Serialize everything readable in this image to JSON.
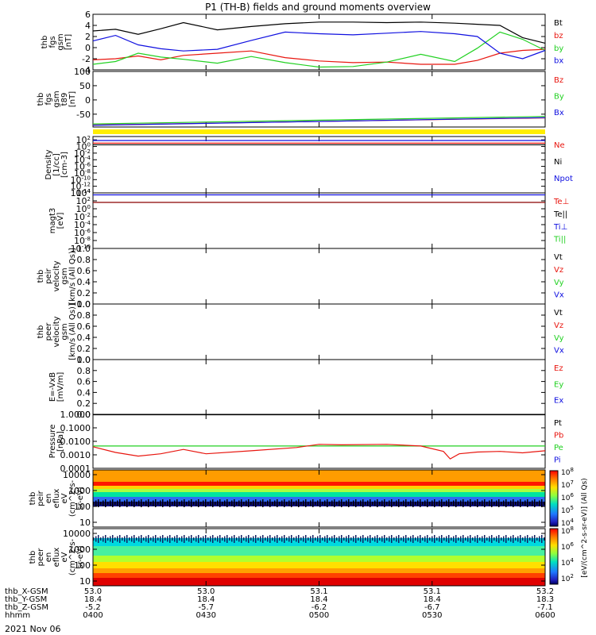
{
  "title": "P1 (TH-B) fields and ground moments overview",
  "date": "2021 Nov 06",
  "colors": {
    "black": "#000000",
    "red": "#e8160f",
    "green": "#22d122",
    "blue": "#1010e0",
    "darkred": "#8b0000",
    "yellow": "#ffee00"
  },
  "ephemeris": {
    "labels": [
      "thb_X-GSM",
      "thb_Y-GSM",
      "thb_Z-GSM",
      "hhmm"
    ],
    "columns": [
      [
        "53.0",
        "18.4",
        "-5.2",
        "0400"
      ],
      [
        "53.0",
        "18.4",
        "-5.7",
        "0430"
      ],
      [
        "53.1",
        "18.4",
        "-6.2",
        "0500"
      ],
      [
        "53.1",
        "18.4",
        "-6.7",
        "0530"
      ],
      [
        "53.2",
        "18.3",
        "-7.1",
        "0600"
      ]
    ]
  },
  "colorbar": {
    "label": "[eV/(cm^2-s-sr-eV)] (All Qs)",
    "top_ticks": [
      "10^8",
      "10^7",
      "10^6",
      "10^5",
      "10^4"
    ],
    "bottom_ticks": [
      "10^8",
      "10^6",
      "10^4",
      "10^2"
    ]
  },
  "chart_data": [
    {
      "type": "line",
      "id": "bfield",
      "ylabel": [
        "thb",
        "fgs",
        "gsm",
        "[nT]"
      ],
      "ylim": [
        -4,
        6
      ],
      "yticks": [
        "6",
        "4",
        "2",
        "0",
        "-2",
        "-4"
      ],
      "x_range": [
        "0400",
        "0600"
      ],
      "legend": [
        {
          "text": "Bt",
          "color": "#000000"
        },
        {
          "text": "bz",
          "color": "#e8160f"
        },
        {
          "text": "by",
          "color": "#22d122"
        },
        {
          "text": "bx",
          "color": "#1010e0"
        }
      ],
      "series": [
        {
          "name": "Bt",
          "color": "#000000",
          "x_hours": [
            4.0,
            4.1,
            4.2,
            4.3,
            4.4,
            4.55,
            4.7,
            4.85,
            5.0,
            5.15,
            5.3,
            5.45,
            5.6,
            5.7,
            5.8,
            5.9,
            6.0
          ],
          "values": [
            3.0,
            3.3,
            2.4,
            3.4,
            4.5,
            3.2,
            3.8,
            4.3,
            4.6,
            4.6,
            4.5,
            4.6,
            4.4,
            4.2,
            4.0,
            1.8,
            0.8
          ]
        },
        {
          "name": "bz",
          "color": "#e8160f",
          "x_hours": [
            4.0,
            4.1,
            4.2,
            4.3,
            4.4,
            4.55,
            4.7,
            4.85,
            5.0,
            5.15,
            5.3,
            5.45,
            5.6,
            5.7,
            5.8,
            5.9,
            6.0
          ],
          "values": [
            -2.2,
            -2.0,
            -1.5,
            -2.2,
            -1.4,
            -1.0,
            -0.6,
            -1.8,
            -2.4,
            -2.7,
            -2.6,
            -3.0,
            -3.0,
            -2.3,
            -1.0,
            -0.5,
            -0.3
          ]
        },
        {
          "name": "by",
          "color": "#22d122",
          "x_hours": [
            4.0,
            4.1,
            4.2,
            4.3,
            4.4,
            4.55,
            4.7,
            4.85,
            5.0,
            5.15,
            5.3,
            5.45,
            5.6,
            5.7,
            5.8,
            5.9,
            6.0
          ],
          "values": [
            -3.0,
            -2.5,
            -1.0,
            -1.7,
            -2.1,
            -2.8,
            -1.6,
            -2.7,
            -3.5,
            -3.4,
            -2.6,
            -1.2,
            -2.5,
            -0.1,
            2.8,
            1.5,
            -0.5
          ]
        },
        {
          "name": "bx",
          "color": "#1010e0",
          "x_hours": [
            4.0,
            4.1,
            4.2,
            4.3,
            4.4,
            4.55,
            4.7,
            4.85,
            5.0,
            5.15,
            5.3,
            5.45,
            5.6,
            5.7,
            5.8,
            5.9,
            6.0
          ],
          "values": [
            1.2,
            2.2,
            0.5,
            -0.2,
            -0.6,
            -0.3,
            1.3,
            2.8,
            2.5,
            2.3,
            2.6,
            2.9,
            2.5,
            2.0,
            -1.0,
            -2.0,
            -0.5
          ]
        }
      ]
    },
    {
      "type": "line",
      "id": "bmodel",
      "ylabel": [
        "thb",
        "fgs",
        "gsm",
        "t89",
        "[nT]"
      ],
      "ylim": [
        -95,
        100
      ],
      "yticks": [
        "100",
        "50",
        "0",
        "-50"
      ],
      "legend": [
        {
          "text": "Bz",
          "color": "#e8160f"
        },
        {
          "text": "By",
          "color": "#22d122"
        },
        {
          "text": "Bx",
          "color": "#1010e0"
        }
      ],
      "series": [
        {
          "name": "Bz",
          "color": "#e8160f",
          "x_hours": [
            4.0,
            6.0
          ],
          "values": [
            -88,
            -63
          ]
        },
        {
          "name": "By",
          "color": "#22d122",
          "x_hours": [
            4.0,
            6.0
          ],
          "values": [
            -84,
            -58
          ]
        },
        {
          "name": "Bx",
          "color": "#1010e0",
          "x_hours": [
            4.0,
            6.0
          ],
          "values": [
            -89,
            -62
          ]
        }
      ]
    },
    {
      "type": "line",
      "id": "density",
      "ylabel": [
        "Density",
        "[1/cc]",
        "[cm-3]"
      ],
      "log": true,
      "ylim_exp": [
        -14,
        3
      ],
      "yticks": [
        "10^2",
        "10^0",
        "10^-2",
        "10^-4",
        "10^-6",
        "10^-8",
        "10^-10",
        "10^-12",
        "10^-14"
      ],
      "legend": [
        {
          "text": "Ne",
          "color": "#e8160f"
        },
        {
          "text": "Ni",
          "color": "#000000"
        },
        {
          "text": "Npot",
          "color": "#1010e0"
        }
      ],
      "series": [
        {
          "name": "Ne",
          "color": "#e8160f",
          "exp": 1.0
        },
        {
          "name": "Ni",
          "color": "#000000",
          "exp": 0.5
        },
        {
          "name": "Npot",
          "color": "#1010e0",
          "exp": 1.8
        }
      ]
    },
    {
      "type": "line",
      "id": "temperature",
      "ylabel": [
        "magt3",
        "[eV]"
      ],
      "log": true,
      "ylim_exp": [
        -10,
        4
      ],
      "yticks": [
        "10^4",
        "10^2",
        "10^0",
        "10^-2",
        "10^-4",
        "10^-6",
        "10^-8",
        "10^-10"
      ],
      "legend": [
        {
          "text": "Te⊥",
          "color": "#e8160f"
        },
        {
          "text": "Te||",
          "color": "#000000"
        },
        {
          "text": "Ti⊥",
          "color": "#1010e0"
        },
        {
          "text": "Ti||",
          "color": "#22d122"
        }
      ],
      "series": [
        {
          "name": "Te⊥",
          "color": "#8b0000",
          "exp": 1.6
        },
        {
          "name": "Ti⊥",
          "color": "#1010e0",
          "exp": 3.5
        }
      ]
    },
    {
      "type": "line",
      "id": "peir_velocity",
      "ylabel": [
        "thb",
        "peir",
        "velocity",
        "gsm",
        "[km/s (All Qs)]"
      ],
      "ylim": [
        0,
        1
      ],
      "yticks": [
        "1.0",
        "0.8",
        "0.6",
        "0.4",
        "0.2",
        "0.0"
      ],
      "legend": [
        {
          "text": "Vt",
          "color": "#000000"
        },
        {
          "text": "Vz",
          "color": "#e8160f"
        },
        {
          "text": "Vy",
          "color": "#22d122"
        },
        {
          "text": "Vx",
          "color": "#1010e0"
        }
      ],
      "series": []
    },
    {
      "type": "line",
      "id": "peer_velocity",
      "ylabel": [
        "thb",
        "peer",
        "velocity",
        "gsm",
        "[km/s (All Qs)]"
      ],
      "ylim": [
        0,
        1
      ],
      "yticks": [
        "1.0",
        "0.8",
        "0.6",
        "0.4",
        "0.2",
        "0.0"
      ],
      "legend": [
        {
          "text": "Vt",
          "color": "#000000"
        },
        {
          "text": "Vz",
          "color": "#e8160f"
        },
        {
          "text": "Vy",
          "color": "#22d122"
        },
        {
          "text": "Vx",
          "color": "#1010e0"
        }
      ],
      "series": []
    },
    {
      "type": "line",
      "id": "efield",
      "ylabel": [
        "E=-VxB",
        "[mV/m]"
      ],
      "ylim": [
        0,
        1
      ],
      "yticks": [
        "1.0",
        "0.8",
        "0.6",
        "0.4",
        "0.2",
        "0.0"
      ],
      "legend": [
        {
          "text": "Ez",
          "color": "#e8160f"
        },
        {
          "text": "Ey",
          "color": "#22d122"
        },
        {
          "text": "Ex",
          "color": "#1010e0"
        }
      ],
      "series": []
    },
    {
      "type": "line",
      "id": "pressure",
      "ylabel": [
        "Pressure",
        "[nPa]"
      ],
      "log": true,
      "ylim_exp": [
        -4,
        0
      ],
      "yticks": [
        "1.0000",
        "0.1000",
        "0.0100",
        "0.0010",
        "0.0001"
      ],
      "legend": [
        {
          "text": "Pt",
          "color": "#000000"
        },
        {
          "text": "Pb",
          "color": "#e8160f"
        },
        {
          "text": "Pe",
          "color": "#22d122"
        },
        {
          "text": "Pi",
          "color": "#1010e0"
        }
      ],
      "series": [
        {
          "name": "Pt",
          "color": "#000000",
          "x_hours": [
            4.0,
            6.0
          ],
          "values": [
            0.93,
            0.93
          ]
        },
        {
          "name": "Pe",
          "color": "#22d122",
          "x_hours": [
            4.0,
            6.0
          ],
          "values": [
            0.0045,
            0.0045
          ]
        },
        {
          "name": "Pb",
          "color": "#e8160f",
          "x_hours": [
            4.0,
            4.1,
            4.2,
            4.3,
            4.4,
            4.5,
            4.7,
            4.9,
            5.0,
            5.1,
            5.3,
            5.45,
            5.55,
            5.58,
            5.62,
            5.7,
            5.8,
            5.9,
            6.0
          ],
          "values": [
            0.004,
            0.0015,
            0.0008,
            0.0012,
            0.0025,
            0.0012,
            0.002,
            0.0035,
            0.006,
            0.0055,
            0.006,
            0.0045,
            0.0018,
            0.0005,
            0.0012,
            0.0016,
            0.0018,
            0.0014,
            0.002
          ]
        }
      ]
    },
    {
      "type": "heatmap",
      "id": "peir_spectrogram",
      "ylabel": [
        "thb",
        "peir",
        "en",
        "eflux",
        "eV",
        "(cm^2-s-",
        "sr-eV)"
      ],
      "log": true,
      "ylim_exp": [
        0.7,
        4.3
      ],
      "yticks": [
        "10000",
        "1000",
        "100",
        "10"
      ],
      "bands": [
        {
          "from_exp": 3.55,
          "to_exp": 4.3,
          "color": "#ff9c00"
        },
        {
          "from_exp": 3.3,
          "to_exp": 3.55,
          "color": "#ff1800"
        },
        {
          "from_exp": 3.1,
          "to_exp": 3.3,
          "color": "#ffd200"
        },
        {
          "from_exp": 2.9,
          "to_exp": 3.1,
          "color": "#a8ff40"
        },
        {
          "from_exp": 2.6,
          "to_exp": 2.9,
          "color": "#00e5a0"
        },
        {
          "from_exp": 2.3,
          "to_exp": 2.6,
          "color": "#2f6cf2"
        },
        {
          "from_exp": 2.0,
          "to_exp": 2.3,
          "color": "#101080"
        },
        {
          "from_exp": 0.7,
          "to_exp": 2.0,
          "color": "#ffffff"
        }
      ]
    },
    {
      "type": "heatmap",
      "id": "peer_spectrogram",
      "ylabel": [
        "thb",
        "peer",
        "en",
        "eflux",
        "eV",
        "(cm^2-s-",
        "sr-eV)"
      ],
      "log": true,
      "ylim_exp": [
        0.7,
        4.3
      ],
      "yticks": [
        "10000",
        "1000",
        "100",
        "10"
      ],
      "bands": [
        {
          "from_exp": 3.7,
          "to_exp": 4.3,
          "color": "#ffffff"
        },
        {
          "from_exp": 3.2,
          "to_exp": 3.7,
          "color": "#00d9e0"
        },
        {
          "from_exp": 2.6,
          "to_exp": 3.2,
          "color": "#48f0a0"
        },
        {
          "from_exp": 2.2,
          "to_exp": 2.6,
          "color": "#b0ff30"
        },
        {
          "from_exp": 1.8,
          "to_exp": 2.2,
          "color": "#ffe000"
        },
        {
          "from_exp": 1.5,
          "to_exp": 1.8,
          "color": "#ffa000"
        },
        {
          "from_exp": 1.2,
          "to_exp": 1.5,
          "color": "#ff4000"
        },
        {
          "from_exp": 0.7,
          "to_exp": 1.2,
          "color": "#e00000"
        }
      ]
    }
  ]
}
